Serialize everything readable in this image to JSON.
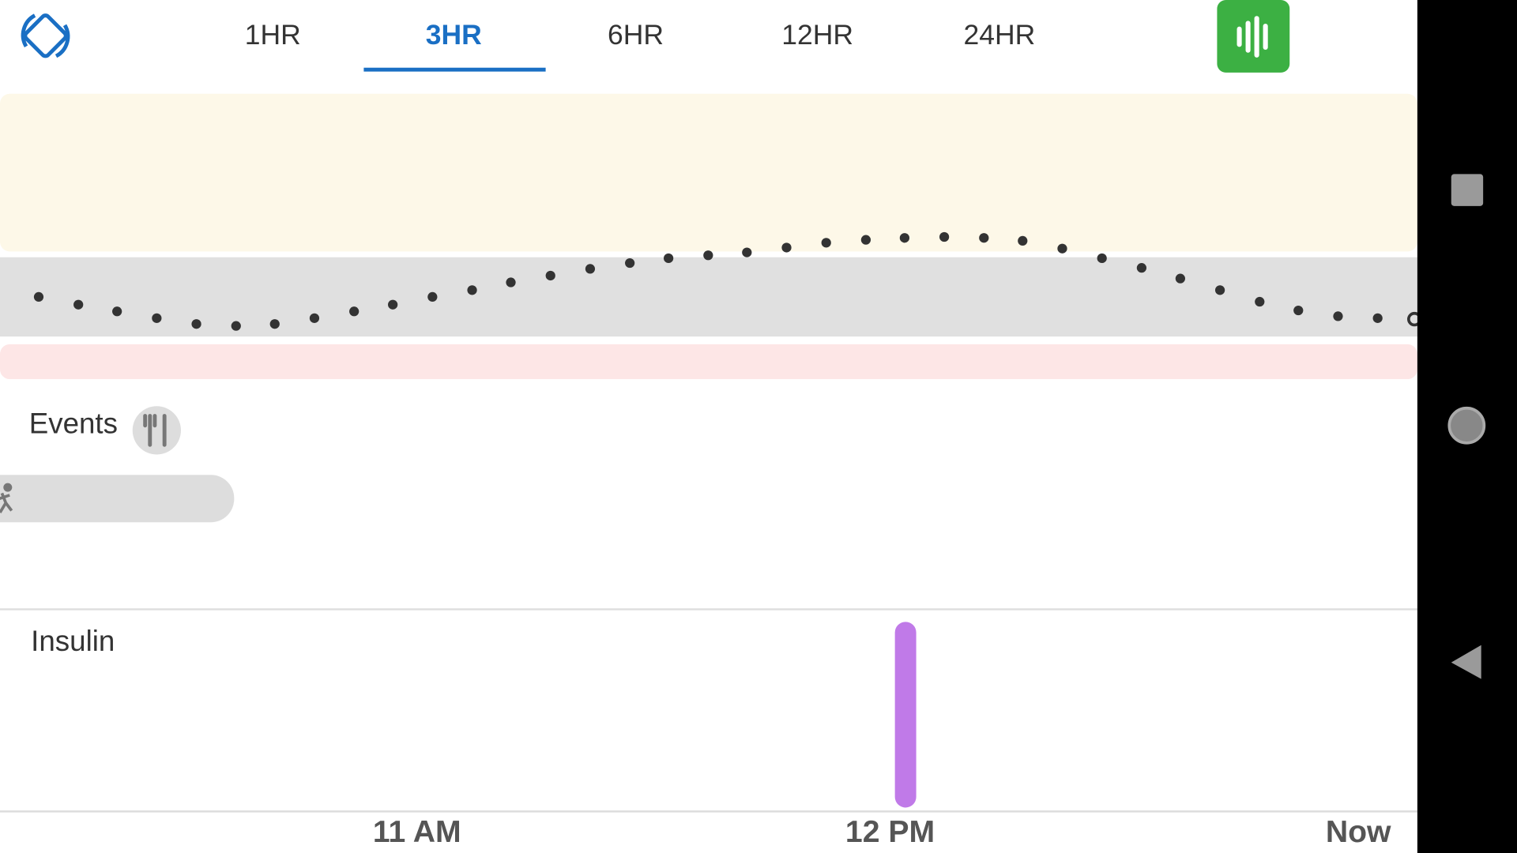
{
  "tabs": [
    "1HR",
    "3HR",
    "6HR",
    "12HR",
    "24HR"
  ],
  "events": {
    "title": "Events"
  },
  "insulin": {
    "title": "Insulin"
  },
  "time_axis": [
    "11 AM",
    "12 PM",
    "Now"
  ]
}
